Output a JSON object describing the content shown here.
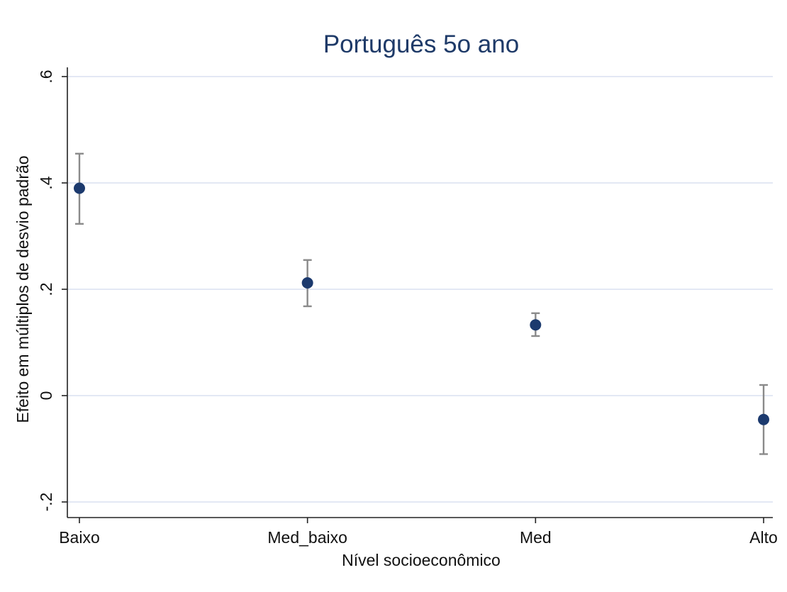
{
  "chart_data": {
    "type": "scatter",
    "title": "Português 5o ano",
    "xlabel": "Nível socioeconômico",
    "ylabel": "Efeito em múltiplos de desvio padrão",
    "categories": [
      "Baixo",
      "Med_baixo",
      "Med",
      "Alto"
    ],
    "values": [
      0.39,
      0.212,
      0.133,
      -0.045
    ],
    "ci_lower": [
      0.323,
      0.168,
      0.112,
      -0.11
    ],
    "ci_upper": [
      0.455,
      0.255,
      0.155,
      0.02
    ],
    "ylim": [
      -0.2,
      0.6
    ],
    "yticks": [
      -0.2,
      0,
      0.2,
      0.4,
      0.6
    ],
    "ytick_labels": [
      "-.2",
      "0",
      ".2",
      ".4",
      ".6"
    ],
    "grid": true,
    "legend": "none",
    "colors": {
      "point": "#1c3a6e",
      "ci": "#8a8a8a",
      "grid": "#e3e8f4",
      "title": "#1e3a68"
    }
  }
}
